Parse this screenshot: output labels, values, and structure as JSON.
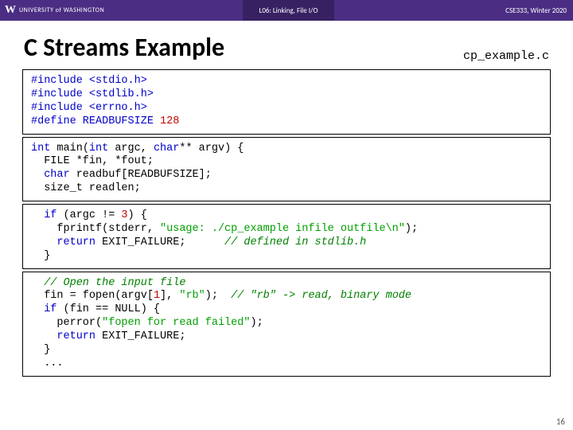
{
  "header": {
    "uw_w": "W",
    "uw_text": "UNIVERSITY of WASHINGTON",
    "lecture": "L06: Linking, File I/O",
    "course": "CSE333, Winter 2020",
    "bg_left": "#4b2e83",
    "bg_center": "#372163"
  },
  "title": "C Streams Example",
  "filename": "cp_example.c",
  "code": {
    "box1": [
      {
        "t": "#include <stdio.h>",
        "c": "kw"
      },
      {
        "t": "#include <stdlib.h>",
        "c": "kw"
      },
      {
        "t": "#include <errno.h>",
        "c": "kw"
      },
      {
        "segs": [
          {
            "t": "#define READBUFSIZE ",
            "c": "kw"
          },
          {
            "t": "128",
            "c": "num"
          }
        ]
      }
    ],
    "box2": [
      {
        "segs": [
          {
            "t": "int",
            "c": "kw"
          },
          {
            "t": " main("
          },
          {
            "t": "int",
            "c": "kw"
          },
          {
            "t": " argc, "
          },
          {
            "t": "char",
            "c": "kw"
          },
          {
            "t": "** argv) {"
          }
        ]
      },
      {
        "t": "  FILE *fin, *fout;"
      },
      {
        "segs": [
          {
            "t": "  "
          },
          {
            "t": "char",
            "c": "kw"
          },
          {
            "t": " readbuf[READBUFSIZE];"
          }
        ]
      },
      {
        "t": "  size_t readlen;"
      }
    ],
    "box3": [
      {
        "segs": [
          {
            "t": "  "
          },
          {
            "t": "if",
            "c": "kw"
          },
          {
            "t": " (argc != "
          },
          {
            "t": "3",
            "c": "num"
          },
          {
            "t": ") {"
          }
        ]
      },
      {
        "segs": [
          {
            "t": "    fprintf(stderr, "
          },
          {
            "t": "\"usage: ./cp_example infile outfile\\n\"",
            "c": "str"
          },
          {
            "t": ");"
          }
        ]
      },
      {
        "segs": [
          {
            "t": "    "
          },
          {
            "t": "return",
            "c": "kw"
          },
          {
            "t": " EXIT_FAILURE;      "
          },
          {
            "t": "// defined in stdlib.h",
            "c": "cmt"
          }
        ]
      },
      {
        "t": "  }"
      }
    ],
    "box4": [
      {
        "segs": [
          {
            "t": "  "
          },
          {
            "t": "// Open the input file",
            "c": "cmt"
          }
        ]
      },
      {
        "segs": [
          {
            "t": "  fin = fopen(argv["
          },
          {
            "t": "1",
            "c": "num"
          },
          {
            "t": "], "
          },
          {
            "t": "\"rb\"",
            "c": "str"
          },
          {
            "t": ");  "
          },
          {
            "t": "// \"rb\" -> read, binary mode",
            "c": "cmt"
          }
        ]
      },
      {
        "segs": [
          {
            "t": "  "
          },
          {
            "t": "if",
            "c": "kw"
          },
          {
            "t": " (fin == NULL) {"
          }
        ]
      },
      {
        "segs": [
          {
            "t": "    perror("
          },
          {
            "t": "\"fopen for read failed\"",
            "c": "str"
          },
          {
            "t": ");"
          }
        ]
      },
      {
        "segs": [
          {
            "t": "    "
          },
          {
            "t": "return",
            "c": "kw"
          },
          {
            "t": " EXIT_FAILURE;"
          }
        ]
      },
      {
        "t": "  }"
      },
      {
        "t": "  ..."
      }
    ]
  },
  "colors": {
    "keyword": "#0000c8",
    "number": "#c00000",
    "string": "#00a000",
    "comment": "#008000",
    "border": "#000000"
  },
  "page_number": "16"
}
